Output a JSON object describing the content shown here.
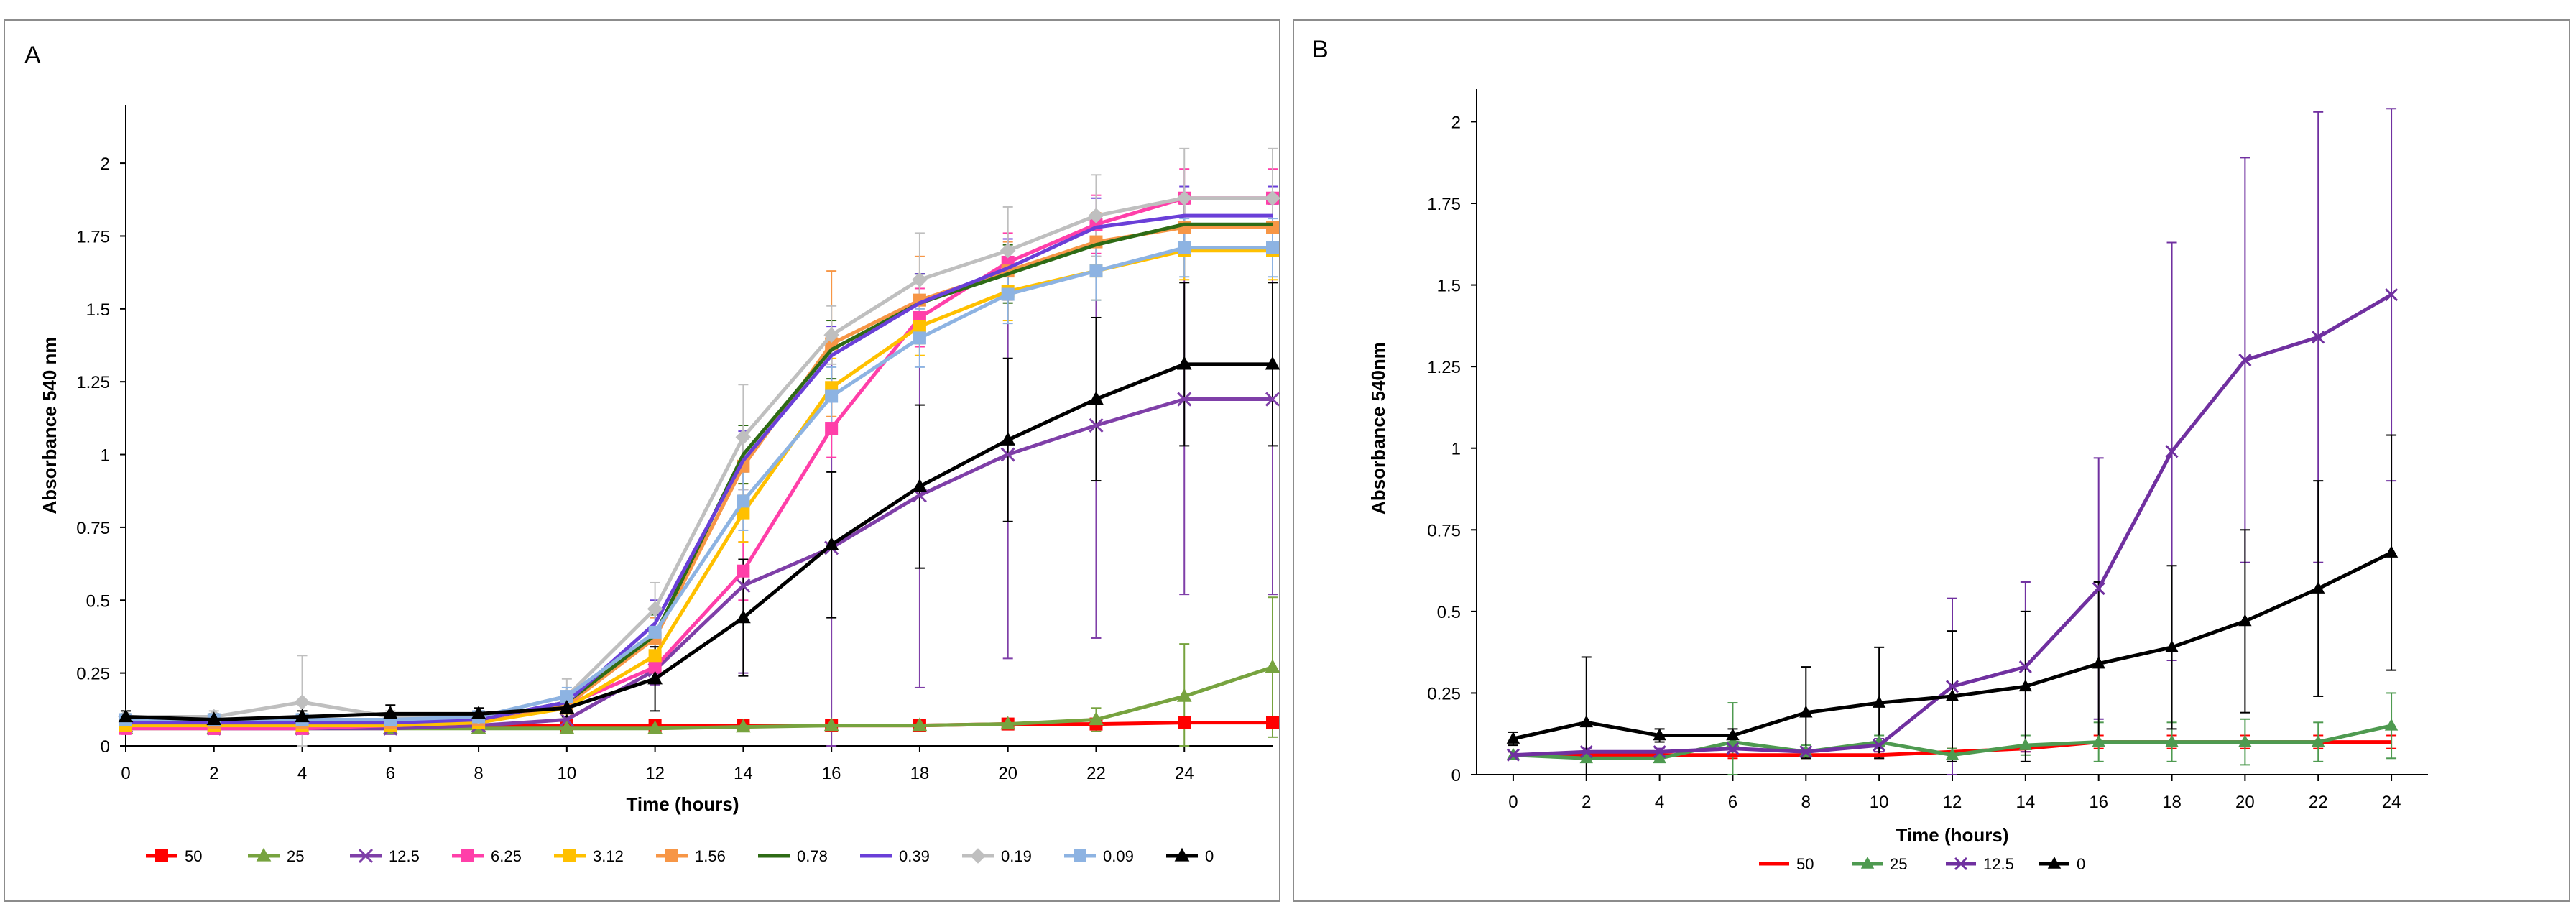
{
  "panels": [
    {
      "letter": "A"
    },
    {
      "letter": "B"
    }
  ],
  "chart_data": [
    {
      "panel": "A",
      "type": "line",
      "title": "",
      "xlabel": "Time (hours)",
      "ylabel": "Absorbance 540 nm",
      "xlim": [
        0,
        26
      ],
      "ylim": [
        0,
        2.2
      ],
      "x_ticks": [
        0,
        2,
        4,
        6,
        8,
        10,
        12,
        14,
        16,
        18,
        20,
        22,
        24
      ],
      "x_tick_labels": [
        "0",
        "2",
        "4",
        "6",
        "8",
        "10",
        "12",
        "14",
        "16",
        "18",
        "20",
        "22",
        "24"
      ],
      "y_ticks": [
        0,
        0.25,
        0.5,
        0.75,
        1,
        1.25,
        1.5,
        1.75,
        2
      ],
      "y_tick_labels": [
        "0",
        "0.25",
        "0.5",
        "0.75",
        "1",
        "1.25",
        "1.5",
        "1.75",
        "2"
      ],
      "legend_position": "bottom",
      "x": [
        0,
        2,
        4,
        6,
        8,
        10,
        12,
        14,
        16,
        18,
        20,
        22,
        24,
        26
      ],
      "series": [
        {
          "name": "50",
          "color": "#FF0000",
          "marker": "square",
          "values": [
            0.08,
            0.07,
            0.07,
            0.07,
            0.07,
            0.07,
            0.07,
            0.07,
            0.07,
            0.07,
            0.075,
            0.075,
            0.08,
            0.08
          ],
          "errors": [
            0.01,
            0.01,
            0.01,
            0.01,
            0.01,
            0.01,
            0.01,
            0.01,
            0.01,
            0.01,
            0.01,
            0.01,
            0.01,
            0.01
          ]
        },
        {
          "name": "25",
          "color": "#77A33F",
          "marker": "triangle",
          "values": [
            0.06,
            0.06,
            0.06,
            0.06,
            0.06,
            0.06,
            0.06,
            0.065,
            0.07,
            0.07,
            0.075,
            0.09,
            0.17,
            0.27
          ],
          "errors": [
            0.01,
            0.01,
            0.01,
            0.01,
            0.01,
            0.01,
            0.01,
            0.01,
            0.01,
            0.01,
            0.01,
            0.04,
            0.18,
            0.24
          ]
        },
        {
          "name": "12.5",
          "color": "#7F3FA8",
          "marker": "x",
          "values": [
            0.07,
            0.06,
            0.06,
            0.06,
            0.07,
            0.09,
            0.26,
            0.55,
            0.68,
            0.86,
            1.0,
            1.1,
            1.19,
            1.19
          ],
          "errors": [
            0.02,
            0.02,
            0.02,
            0.02,
            0.02,
            0.03,
            0.05,
            0.3,
            0.68,
            0.66,
            0.7,
            0.73,
            0.67,
            0.67
          ]
        },
        {
          "name": "6.25",
          "color": "#FF3FA9",
          "marker": "square",
          "values": [
            0.06,
            0.06,
            0.06,
            0.07,
            0.08,
            0.14,
            0.27,
            0.6,
            1.09,
            1.47,
            1.66,
            1.79,
            1.88,
            1.88
          ],
          "errors": [
            0.02,
            0.02,
            0.02,
            0.02,
            0.02,
            0.03,
            0.05,
            0.1,
            0.1,
            0.1,
            0.1,
            0.1,
            0.1,
            0.1
          ]
        },
        {
          "name": "3.12",
          "color": "#FFC000",
          "marker": "square",
          "values": [
            0.07,
            0.07,
            0.07,
            0.07,
            0.08,
            0.13,
            0.31,
            0.8,
            1.23,
            1.44,
            1.56,
            1.63,
            1.7,
            1.7
          ],
          "errors": [
            0.02,
            0.02,
            0.02,
            0.02,
            0.02,
            0.03,
            0.06,
            0.1,
            0.1,
            0.1,
            0.1,
            0.1,
            0.1,
            0.1
          ]
        },
        {
          "name": "1.56",
          "color": "#F79646",
          "marker": "square",
          "values": [
            0.09,
            0.08,
            0.08,
            0.08,
            0.09,
            0.14,
            0.37,
            0.96,
            1.38,
            1.53,
            1.63,
            1.73,
            1.78,
            1.78
          ],
          "errors": [
            0.02,
            0.02,
            0.02,
            0.02,
            0.02,
            0.03,
            0.07,
            0.1,
            0.25,
            0.15,
            0.1,
            0.1,
            0.1,
            0.1
          ]
        },
        {
          "name": "0.78",
          "color": "#2E6B15",
          "marker": "none",
          "values": [
            0.09,
            0.09,
            0.09,
            0.09,
            0.09,
            0.15,
            0.38,
            1.0,
            1.36,
            1.52,
            1.62,
            1.72,
            1.79,
            1.79
          ],
          "errors": [
            0.02,
            0.02,
            0.02,
            0.02,
            0.02,
            0.03,
            0.07,
            0.1,
            0.1,
            0.1,
            0.1,
            0.1,
            0.1,
            0.1
          ]
        },
        {
          "name": "0.39",
          "color": "#6A3FD8",
          "marker": "none",
          "values": [
            0.08,
            0.08,
            0.08,
            0.08,
            0.09,
            0.15,
            0.42,
            0.98,
            1.34,
            1.52,
            1.64,
            1.78,
            1.82,
            1.82
          ],
          "errors": [
            0.02,
            0.02,
            0.02,
            0.02,
            0.02,
            0.03,
            0.08,
            0.1,
            0.1,
            0.1,
            0.1,
            0.1,
            0.1,
            0.1
          ]
        },
        {
          "name": "0.19",
          "color": "#BFBFBF",
          "marker": "diamond",
          "values": [
            0.1,
            0.1,
            0.15,
            0.1,
            0.1,
            0.17,
            0.47,
            1.06,
            1.41,
            1.6,
            1.7,
            1.82,
            1.88,
            1.88
          ],
          "errors": [
            0.02,
            0.02,
            0.16,
            0.02,
            0.02,
            0.06,
            0.09,
            0.18,
            0.1,
            0.16,
            0.15,
            0.14,
            0.17,
            0.17
          ]
        },
        {
          "name": "0.09",
          "color": "#8DB3E2",
          "marker": "square",
          "values": [
            0.09,
            0.09,
            0.09,
            0.09,
            0.1,
            0.17,
            0.39,
            0.84,
            1.2,
            1.4,
            1.55,
            1.63,
            1.71,
            1.71
          ],
          "errors": [
            0.02,
            0.02,
            0.02,
            0.02,
            0.02,
            0.03,
            0.07,
            0.1,
            0.1,
            0.1,
            0.1,
            0.1,
            0.1,
            0.1
          ]
        },
        {
          "name": "0",
          "color": "#000000",
          "marker": "triangle",
          "values": [
            0.1,
            0.09,
            0.1,
            0.11,
            0.11,
            0.13,
            0.23,
            0.44,
            0.69,
            0.89,
            1.05,
            1.19,
            1.31,
            1.31
          ],
          "errors": [
            0.02,
            0.02,
            0.02,
            0.03,
            0.02,
            0.03,
            0.11,
            0.2,
            0.25,
            0.28,
            0.28,
            0.28,
            0.28,
            0.28
          ]
        }
      ]
    },
    {
      "panel": "B",
      "type": "line",
      "title": "",
      "xlabel": "Time (hours)",
      "ylabel": "Absorbance 540nm",
      "xlim": [
        -1,
        25
      ],
      "ylim": [
        0,
        2.1
      ],
      "x_ticks": [
        0,
        2,
        4,
        6,
        8,
        10,
        12,
        14,
        16,
        18,
        20,
        22,
        24
      ],
      "x_tick_labels": [
        "0",
        "2",
        "4",
        "6",
        "8",
        "10",
        "12",
        "14",
        "16",
        "18",
        "20",
        "22",
        "24"
      ],
      "y_ticks": [
        0,
        0.25,
        0.5,
        0.75,
        1,
        1.25,
        1.5,
        1.75,
        2
      ],
      "y_tick_labels": [
        "0",
        "0.25",
        "0.5",
        "0.75",
        "1",
        "1.25",
        "1.5",
        "1.75",
        "2"
      ],
      "legend_position": "bottom",
      "x": [
        0,
        2,
        4,
        6,
        8,
        10,
        12,
        14,
        16,
        18,
        20,
        22,
        24
      ],
      "series": [
        {
          "name": "50",
          "color": "#FF0000",
          "marker": "none",
          "values": [
            0.06,
            0.06,
            0.06,
            0.06,
            0.06,
            0.06,
            0.07,
            0.08,
            0.1,
            0.1,
            0.1,
            0.1,
            0.1
          ],
          "errors": [
            0.01,
            0.01,
            0.01,
            0.01,
            0.01,
            0.01,
            0.01,
            0.01,
            0.02,
            0.02,
            0.02,
            0.02,
            0.02
          ]
        },
        {
          "name": "25",
          "color": "#4E9A50",
          "marker": "triangle",
          "values": [
            0.06,
            0.05,
            0.05,
            0.1,
            0.07,
            0.1,
            0.06,
            0.09,
            0.1,
            0.1,
            0.1,
            0.1,
            0.15
          ],
          "errors": [
            0.01,
            0.01,
            0.01,
            0.12,
            0.02,
            0.02,
            0.02,
            0.03,
            0.06,
            0.06,
            0.07,
            0.06,
            0.1
          ]
        },
        {
          "name": "12.5",
          "color": "#7030A0",
          "marker": "x",
          "values": [
            0.06,
            0.07,
            0.07,
            0.08,
            0.07,
            0.09,
            0.27,
            0.33,
            0.57,
            0.99,
            1.27,
            1.34,
            1.47
          ],
          "errors": [
            0.01,
            0.01,
            0.01,
            0.01,
            0.01,
            0.02,
            0.27,
            0.26,
            0.4,
            0.64,
            0.62,
            0.69,
            0.57
          ]
        },
        {
          "name": "0",
          "color": "#000000",
          "marker": "triangle",
          "values": [
            0.11,
            0.16,
            0.12,
            0.12,
            0.19,
            0.22,
            0.24,
            0.27,
            0.34,
            0.39,
            0.47,
            0.57,
            0.68
          ],
          "errors": [
            0.02,
            0.2,
            0.02,
            0.02,
            0.14,
            0.17,
            0.2,
            0.23,
            0.25,
            0.25,
            0.28,
            0.33,
            0.36
          ]
        }
      ]
    }
  ]
}
